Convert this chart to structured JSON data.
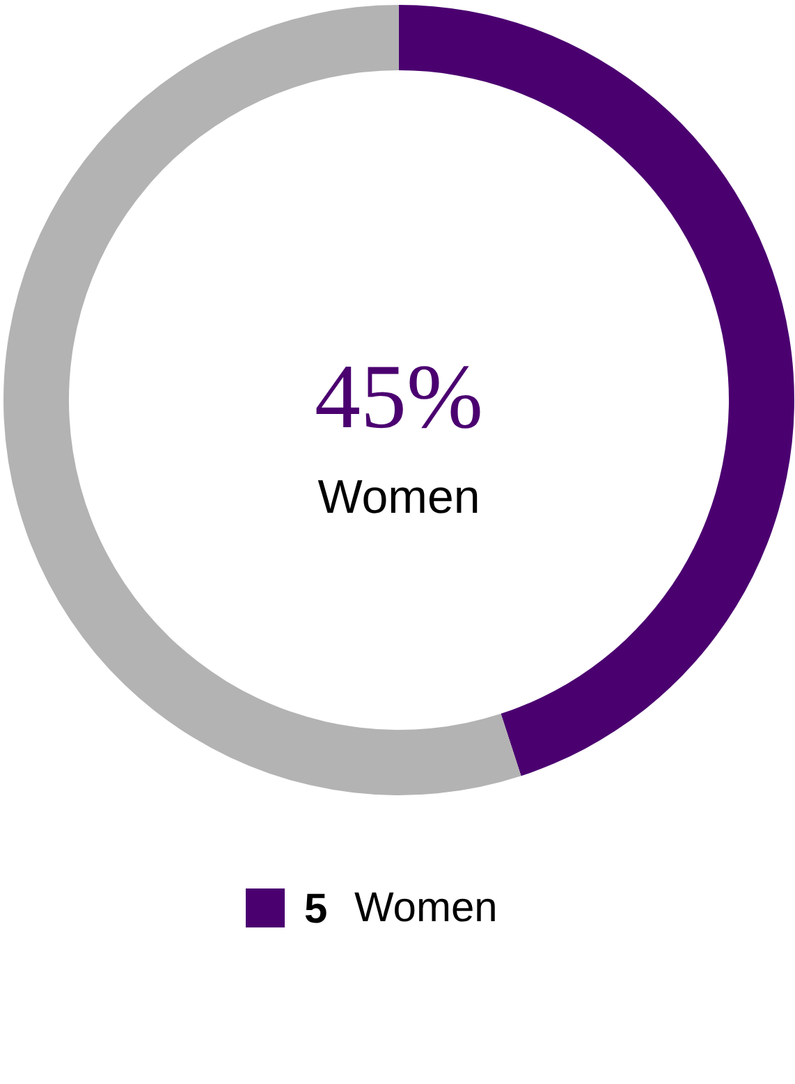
{
  "chart_data": {
    "type": "donut",
    "categories": [
      "Women",
      null
    ],
    "values": [
      45,
      55
    ],
    "colors": [
      "#4b0070",
      "#b3b3b3"
    ],
    "value_labels": [
      "45%",
      null
    ],
    "legend": "bottom",
    "annotations": [
      "5"
    ]
  }
}
